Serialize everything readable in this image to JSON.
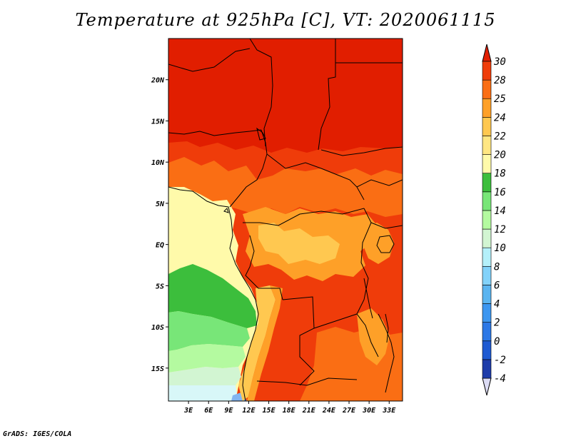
{
  "title": "Temperature at 925hPa [C], VT: 2020061115",
  "footer": "GrADS: IGES/COLA",
  "map": {
    "region": {
      "lon_min": 0,
      "lon_max": 35,
      "lat_min": -19,
      "lat_max": 25
    },
    "lat_ticks": [
      {
        "lat": 20,
        "label": "20N"
      },
      {
        "lat": 15,
        "label": "15N"
      },
      {
        "lat": 10,
        "label": "10N"
      },
      {
        "lat": 5,
        "label": "5N"
      },
      {
        "lat": 0,
        "label": "EQ"
      },
      {
        "lat": -5,
        "label": "5S"
      },
      {
        "lat": -10,
        "label": "10S"
      },
      {
        "lat": -15,
        "label": "15S"
      }
    ],
    "lon_ticks": [
      {
        "lon": 3,
        "label": "3E"
      },
      {
        "lon": 6,
        "label": "6E"
      },
      {
        "lon": 9,
        "label": "9E"
      },
      {
        "lon": 12,
        "label": "12E"
      },
      {
        "lon": 15,
        "label": "15E"
      },
      {
        "lon": 18,
        "label": "18E"
      },
      {
        "lon": 21,
        "label": "21E"
      },
      {
        "lon": 24,
        "label": "24E"
      },
      {
        "lon": 27,
        "label": "27E"
      },
      {
        "lon": 30,
        "label": "30E"
      },
      {
        "lon": 33,
        "label": "33E"
      }
    ]
  },
  "colorbar": {
    "levels": [
      "-4",
      "-2",
      "0",
      "2",
      "4",
      "6",
      "8",
      "10",
      "12",
      "14",
      "16",
      "18",
      "20",
      "22",
      "24",
      "25",
      "28",
      "30"
    ],
    "colors": [
      "#0a0a78",
      "#1e3caa",
      "#1e5ad2",
      "#2c78e6",
      "#3c96f0",
      "#5ab4f0",
      "#82d2fa",
      "#b4f0fa",
      "#d2f5d2",
      "#b4faa0",
      "#78e678",
      "#3cbe3c",
      "#fffaaa",
      "#ffe682",
      "#ffc850",
      "#fea028",
      "#fa6e14",
      "#ef3c0a",
      "#e11e00"
    ],
    "lower_arrow_color": "#dcdcf5",
    "upper_arrow_color": "#e11e00"
  },
  "legend": {
    "colors": {
      "hot": "#e11e00",
      "very_warm": "#ef3c0a",
      "warm": "#fa6e14",
      "mild": "#fea028",
      "tan": "#ffc850",
      "pale": "#ffe682",
      "cream": "#fffaaa",
      "green_dark": "#3cbe3c",
      "green": "#78e678",
      "green_light": "#b4faa0",
      "green_pale": "#d2f5d2",
      "cyan_pale": "#d8f7f8",
      "blue_light": "#82b4f0"
    }
  }
}
